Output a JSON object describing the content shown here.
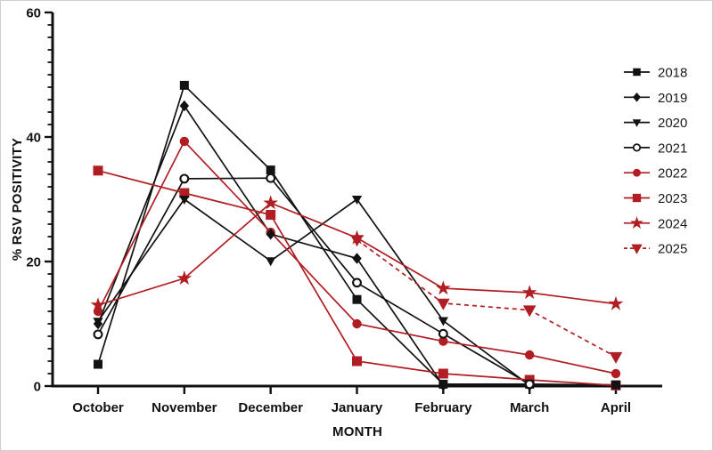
{
  "chart_data": {
    "type": "line",
    "title": "",
    "xlabel": "MONTH",
    "ylabel": "% RSV POSITIVITY",
    "categories": [
      "October",
      "November",
      "December",
      "January",
      "February",
      "March",
      "April"
    ],
    "ylim": [
      0,
      60
    ],
    "yticks": [
      0,
      20,
      40,
      60
    ],
    "minor_tick_step": 2,
    "grid": false,
    "legend_position": "right",
    "colors": {
      "black": "#121212",
      "darkred": "#B01E23"
    },
    "series": [
      {
        "name": "2018",
        "color": "black",
        "marker": "square",
        "line": "solid",
        "marker_scale": 1.0,
        "values": [
          3.5,
          48.3,
          34.7,
          13.9,
          0.3,
          0.3,
          0.2
        ]
      },
      {
        "name": "2019",
        "color": "black",
        "marker": "diamond",
        "line": "solid",
        "marker_scale": 1.0,
        "values": [
          10,
          45,
          24.4,
          20.5,
          0.1,
          0.1,
          null
        ]
      },
      {
        "name": "2020",
        "color": "black",
        "marker": "triangle-down",
        "line": "solid",
        "marker_scale": 1.0,
        "values": [
          10.4,
          30,
          20.1,
          30,
          10.5,
          0.1,
          null
        ]
      },
      {
        "name": "2021",
        "color": "black",
        "marker": "circle-open",
        "line": "solid",
        "marker_scale": 1.0,
        "values": [
          8.3,
          33.3,
          33.4,
          16.6,
          8.4,
          0.3,
          null
        ]
      },
      {
        "name": "2022",
        "color": "darkred",
        "marker": "circle",
        "line": "solid",
        "marker_scale": 1.0,
        "values": [
          12,
          39.3,
          24.7,
          10,
          7.2,
          5,
          2
        ]
      },
      {
        "name": "2023",
        "color": "darkred",
        "marker": "square",
        "line": "solid",
        "marker_scale": 1.1,
        "values": [
          34.6,
          31,
          27.5,
          4,
          2,
          1,
          0.1
        ]
      },
      {
        "name": "2024",
        "color": "darkred",
        "marker": "star",
        "line": "solid",
        "marker_scale": 1.0,
        "values": [
          13,
          17.3,
          29.4,
          23.8,
          15.7,
          15,
          13.2
        ]
      },
      {
        "name": "2025",
        "color": "darkred",
        "marker": "triangle-down",
        "line": "dashed",
        "marker_scale": 1.3,
        "values": [
          null,
          null,
          null,
          23.5,
          13.3,
          12.2,
          4.7
        ]
      }
    ]
  }
}
